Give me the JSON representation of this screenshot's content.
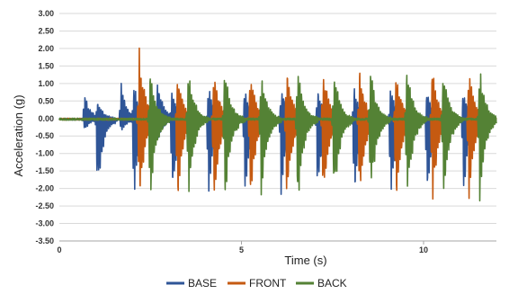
{
  "chart_data": {
    "type": "line",
    "title": "",
    "xlabel": "Time (s)",
    "ylabel": "Acceleration (g)",
    "xlim": [
      0,
      12
    ],
    "ylim": [
      -3.5,
      3.0
    ],
    "x_ticks": [
      "0",
      "5",
      "10"
    ],
    "y_ticks": [
      "3.00",
      "2.50",
      "2.00",
      "1.50",
      "1.00",
      "0.50",
      "0.00",
      "-0.50",
      "-1.00",
      "-1.50",
      "-2.00",
      "-2.50",
      "-3.00",
      "-3.50"
    ],
    "grid": "horizontal",
    "legend": "bottom",
    "series": [
      {
        "name": "BASE",
        "color": "#2F5597",
        "events": [
          {
            "t": 0.7,
            "peak": 0.75,
            "trough": -0.3
          },
          {
            "t": 1.05,
            "peak": 0.6,
            "trough": -2.25
          },
          {
            "t": 1.7,
            "peak": 1.05,
            "trough": -0.4
          },
          {
            "t": 2.05,
            "peak": 1.1,
            "trough": -2.35
          },
          {
            "t": 2.7,
            "peak": 1.15,
            "trough": -0.6
          },
          {
            "t": 3.1,
            "peak": 0.9,
            "trough": -2.35
          },
          {
            "t": 4.1,
            "peak": 0.95,
            "trough": -2.3
          },
          {
            "t": 5.1,
            "peak": 0.9,
            "trough": -2.3
          },
          {
            "t": 6.1,
            "peak": 0.95,
            "trough": -2.3
          },
          {
            "t": 7.1,
            "peak": 0.9,
            "trough": -2.3
          },
          {
            "t": 8.1,
            "peak": 0.9,
            "trough": -2.3
          },
          {
            "t": 9.1,
            "peak": 0.9,
            "trough": -2.3
          },
          {
            "t": 10.1,
            "peak": 0.9,
            "trough": -2.3
          },
          {
            "t": 11.1,
            "peak": 0.9,
            "trough": -2.3
          }
        ]
      },
      {
        "name": "FRONT",
        "color": "#C55A11",
        "events": [
          {
            "t": 2.2,
            "peak": 2.1,
            "trough": -2.55
          },
          {
            "t": 3.25,
            "peak": 1.4,
            "trough": -2.5
          },
          {
            "t": 4.25,
            "peak": 1.45,
            "trough": -2.5
          },
          {
            "t": 5.25,
            "peak": 1.45,
            "trough": -2.5
          },
          {
            "t": 6.25,
            "peak": 1.45,
            "trough": -2.5
          },
          {
            "t": 7.25,
            "peak": 1.45,
            "trough": -2.5
          },
          {
            "t": 8.25,
            "peak": 1.45,
            "trough": -2.5
          },
          {
            "t": 9.25,
            "peak": 1.45,
            "trough": -2.5
          },
          {
            "t": 10.25,
            "peak": 1.45,
            "trough": -2.5
          },
          {
            "t": 11.25,
            "peak": 1.45,
            "trough": -2.5
          }
        ]
      },
      {
        "name": "BACK",
        "color": "#548235",
        "events": [
          {
            "t": 2.5,
            "peak": 1.45,
            "trough": -2.35
          },
          {
            "t": 3.55,
            "peak": 1.45,
            "trough": -2.4
          },
          {
            "t": 4.55,
            "peak": 1.45,
            "trough": -2.4
          },
          {
            "t": 5.55,
            "peak": 1.45,
            "trough": -2.4
          },
          {
            "t": 6.55,
            "peak": 1.5,
            "trough": -2.45
          },
          {
            "t": 7.55,
            "peak": 1.45,
            "trough": -2.4
          },
          {
            "t": 8.55,
            "peak": 1.45,
            "trough": -2.4
          },
          {
            "t": 9.55,
            "peak": 1.5,
            "trough": -2.45
          },
          {
            "t": 10.55,
            "peak": 1.45,
            "trough": -2.4
          },
          {
            "t": 11.55,
            "peak": 1.45,
            "trough": -2.5
          }
        ]
      }
    ]
  }
}
